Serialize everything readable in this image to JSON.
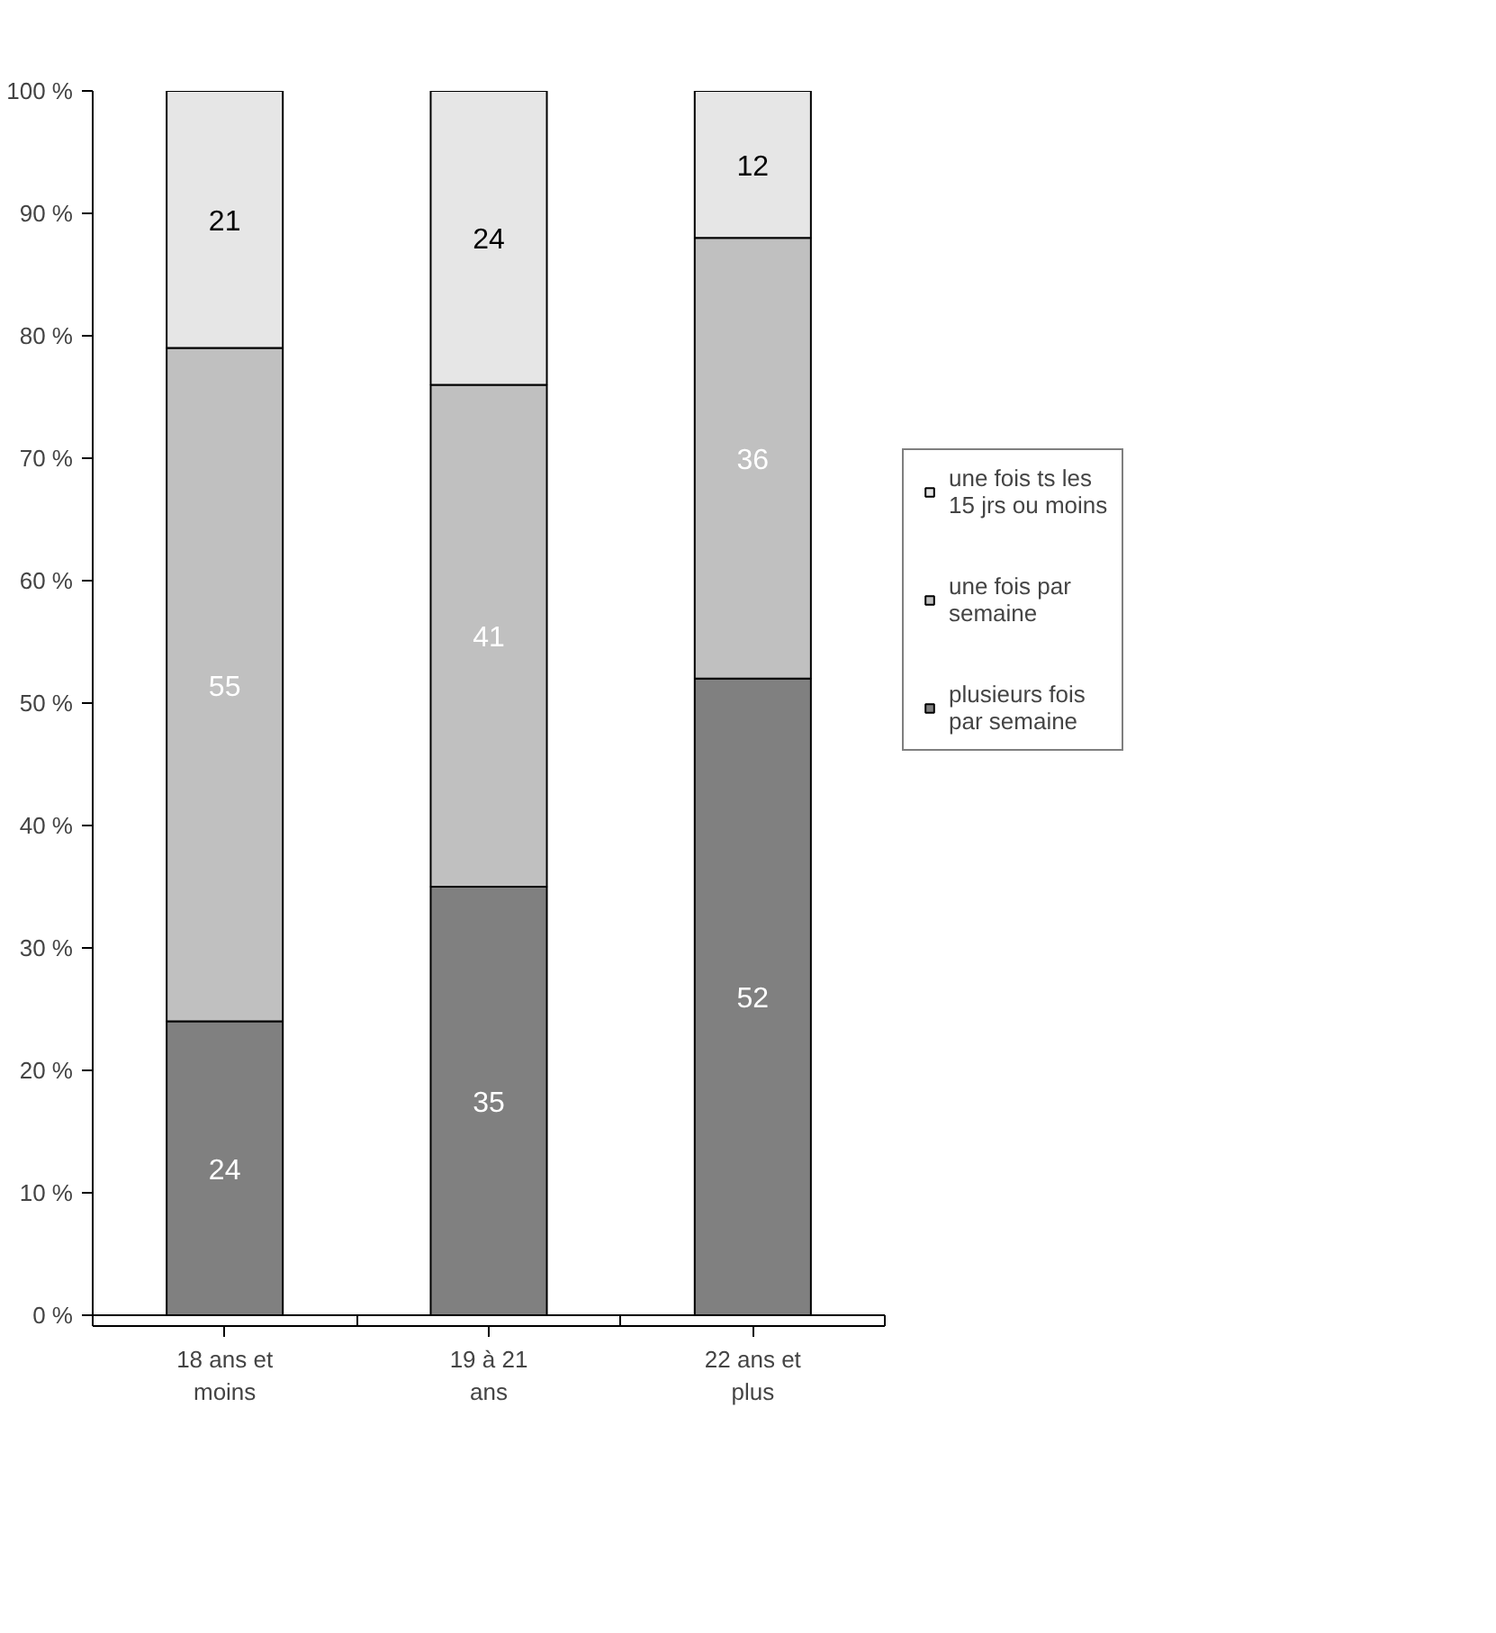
{
  "chart_data": {
    "type": "bar",
    "stacked": true,
    "categories": [
      "18 ans et moins",
      "19 à 21 ans",
      "22 ans et plus"
    ],
    "series": [
      {
        "name": "plusieurs fois par semaine",
        "color": "#808080",
        "values": [
          24,
          35,
          52
        ]
      },
      {
        "name": "une fois par semaine",
        "color": "#c0c0c0",
        "values": [
          55,
          41,
          36
        ]
      },
      {
        "name": "une fois ts les 15 jrs ou moins",
        "color": "#e6e6e6",
        "values": [
          21,
          24,
          12
        ]
      }
    ],
    "ylim": [
      0,
      100
    ],
    "yticks": [
      {
        "value": 0,
        "label": "0 %"
      },
      {
        "value": 10,
        "label": "10 %"
      },
      {
        "value": 20,
        "label": "20 %"
      },
      {
        "value": 30,
        "label": "30 %"
      },
      {
        "value": 40,
        "label": "40 %"
      },
      {
        "value": 50,
        "label": "50 %"
      },
      {
        "value": 60,
        "label": "60 %"
      },
      {
        "value": 70,
        "label": "70 %"
      },
      {
        "value": 80,
        "label": "80 %"
      },
      {
        "value": 90,
        "label": "90 %"
      },
      {
        "value": 100,
        "label": "100 %"
      }
    ],
    "data_labels": true,
    "grid": false,
    "legend": "right"
  }
}
